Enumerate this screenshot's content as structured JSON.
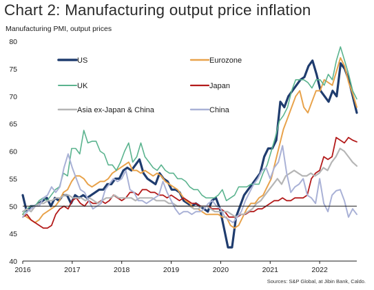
{
  "title": "Chart 2: Manufacturing output price inflation",
  "subtitle": "Manufacturing PMI, output prices",
  "source": "Sources: S&P Global, at Jibin Bank, Caldo.",
  "chart_data": {
    "type": "line",
    "ylim": [
      40,
      80
    ],
    "yticks": [
      40,
      45,
      50,
      55,
      60,
      65,
      70,
      75,
      80
    ],
    "xlim": [
      2016.0,
      2022.75
    ],
    "xticks": [
      2016,
      2017,
      2018,
      2019,
      2020,
      2021,
      2022
    ],
    "xtick_labels": [
      "2016",
      "2017",
      "2018",
      "2019",
      "2020",
      "2021",
      "2022"
    ],
    "reference_line": 50,
    "grid": false,
    "legend": "inside, two columns at top",
    "series": [
      {
        "name": "US",
        "color": "#1f3c6e",
        "width": 3.2,
        "values": [
          52,
          49,
          50,
          50,
          50.5,
          51,
          51.5,
          50,
          51.5,
          51,
          52,
          52,
          50.5,
          52,
          51.5,
          52,
          51.5,
          52,
          52.5,
          53,
          53,
          54,
          54,
          55,
          55,
          56.5,
          57,
          56.5,
          57.5,
          58.5,
          56,
          55,
          54.5,
          54,
          56,
          55,
          54.5,
          53,
          53,
          52.5,
          51,
          50.5,
          50,
          50.5,
          50,
          49.5,
          49,
          51,
          51.5,
          49.5,
          46,
          42.5,
          42.5,
          48,
          50,
          52,
          53,
          54,
          55,
          56,
          59,
          60.5,
          60.5,
          62,
          69,
          68,
          70,
          71,
          72,
          73,
          73.5,
          75.5,
          76.5,
          74,
          71,
          70,
          69,
          71,
          70,
          76,
          75,
          73,
          70,
          67
        ]
      },
      {
        "name": "Eurozone",
        "color": "#e8a24a",
        "width": 2.0,
        "values": [
          48.5,
          48,
          47.5,
          47,
          47.5,
          48.5,
          49,
          49.5,
          50,
          51,
          52.5,
          53,
          54.5,
          55.5,
          55.5,
          55,
          54,
          53.5,
          54,
          54.5,
          54.5,
          55,
          56,
          56.5,
          57,
          57.5,
          58,
          56.5,
          56.5,
          56,
          56.5,
          56,
          55.5,
          56,
          55.5,
          54.5,
          54,
          53.5,
          53,
          52,
          51,
          50.5,
          49.5,
          49.5,
          49,
          48.5,
          48.5,
          48.5,
          48.5,
          48,
          48,
          46.5,
          46,
          46.5,
          48,
          49.5,
          50.5,
          50.5,
          51.5,
          52,
          53.5,
          55,
          58,
          61,
          64,
          66,
          68,
          70,
          71,
          68,
          67,
          69,
          71,
          71,
          73,
          72.5,
          72,
          74.5,
          77,
          75.5,
          72.5,
          70.5,
          68
        ]
      },
      {
        "name": "UK",
        "color": "#5ab38e",
        "width": 1.6,
        "values": [
          48.5,
          49.5,
          50,
          50,
          51,
          51.5,
          51,
          52,
          53,
          53.5,
          56,
          55.5,
          60.5,
          60.5,
          59.5,
          63.8,
          61.5,
          61.8,
          61.8,
          60,
          59.5,
          57.5,
          57.5,
          56.5,
          58,
          60,
          61.5,
          58,
          59,
          61.5,
          59,
          58,
          57,
          56.5,
          57.5,
          56.5,
          56,
          56,
          55,
          55,
          54.5,
          53.5,
          53,
          53,
          52,
          51.5,
          51.5,
          51.5,
          52,
          53,
          51,
          51.5,
          52,
          53.5,
          53.5,
          53.5,
          54,
          54,
          54,
          56,
          57.5,
          60,
          62.5,
          65.5,
          66.5,
          68,
          71,
          73,
          73,
          73,
          72.5,
          71.5,
          73,
          73,
          72,
          74,
          73,
          76.5,
          79,
          76.5,
          74,
          71,
          69.5
        ]
      },
      {
        "name": "Japan",
        "color": "#b31a1a",
        "width": 1.8,
        "values": [
          48,
          48.5,
          47.5,
          47,
          46.5,
          46,
          46,
          46.5,
          48.5,
          49.5,
          50,
          49.5,
          51,
          51.5,
          50.5,
          50,
          51,
          50.5,
          50.5,
          51,
          50.5,
          51,
          52,
          51.5,
          51,
          51.5,
          52.5,
          52.5,
          52,
          53,
          53,
          52.5,
          52.5,
          52,
          52,
          51.5,
          52,
          51.5,
          51,
          51.5,
          51,
          50.5,
          50.5,
          50,
          50,
          50,
          49.5,
          49.5,
          49.5,
          49,
          48,
          48,
          48,
          48.5,
          48.5,
          49,
          49,
          49.5,
          49.5,
          50,
          50.5,
          51,
          51,
          51.5,
          51,
          51,
          51.5,
          51.5,
          51.5,
          52,
          55,
          56,
          56.5,
          59,
          58.5,
          59,
          62.5,
          62,
          61.5,
          62.5,
          62,
          61.7
        ]
      },
      {
        "name": "Asia ex-Japan & China",
        "color": "#b5b5b5",
        "width": 2.2,
        "values": [
          49,
          49.5,
          49,
          50,
          50.5,
          50.5,
          51,
          51,
          51.5,
          51.5,
          52,
          52,
          51.5,
          51.5,
          51.5,
          51,
          51.5,
          51,
          50.5,
          51,
          51.5,
          51.5,
          52,
          51.5,
          51.5,
          51.5,
          51.5,
          51,
          51.5,
          51.5,
          51.5,
          51.5,
          51,
          51,
          51,
          50.5,
          50.5,
          50,
          50,
          50,
          50,
          49.5,
          49.5,
          50,
          50,
          49.5,
          49,
          49,
          49,
          49,
          48.5,
          48,
          48.5,
          48.5,
          49,
          49.5,
          50.5,
          51,
          52,
          53,
          54,
          55,
          54,
          55.5,
          56,
          56.5,
          56,
          55.5,
          55.5,
          56,
          55.5,
          56,
          57,
          56.5,
          58,
          59,
          60.5,
          60,
          59,
          58,
          57.3
        ]
      },
      {
        "name": "China",
        "color": "#a9b1d6",
        "width": 2.0,
        "values": [
          48,
          49,
          49.5,
          50,
          50,
          51.5,
          52,
          53.5,
          52.5,
          53.5,
          57,
          59.5,
          57,
          55,
          53,
          52.5,
          51,
          49.5,
          50,
          50.5,
          53,
          54,
          55,
          54.5,
          55,
          56.5,
          53,
          52.5,
          51,
          51,
          50.5,
          51,
          51.5,
          52,
          54.5,
          52.5,
          51,
          49.5,
          48.5,
          49,
          49,
          48.5,
          49,
          49,
          49.5,
          50.5,
          51,
          50,
          49.5,
          48,
          47.5,
          47,
          48,
          49,
          51,
          52.5,
          54,
          55,
          56.5,
          57,
          55,
          57,
          58,
          61,
          56,
          52.5,
          53.5,
          54,
          55,
          52,
          51.5,
          50.5,
          55,
          50.5,
          49,
          52,
          52.8,
          53,
          51,
          48,
          49.5,
          48.5
        ]
      }
    ]
  }
}
